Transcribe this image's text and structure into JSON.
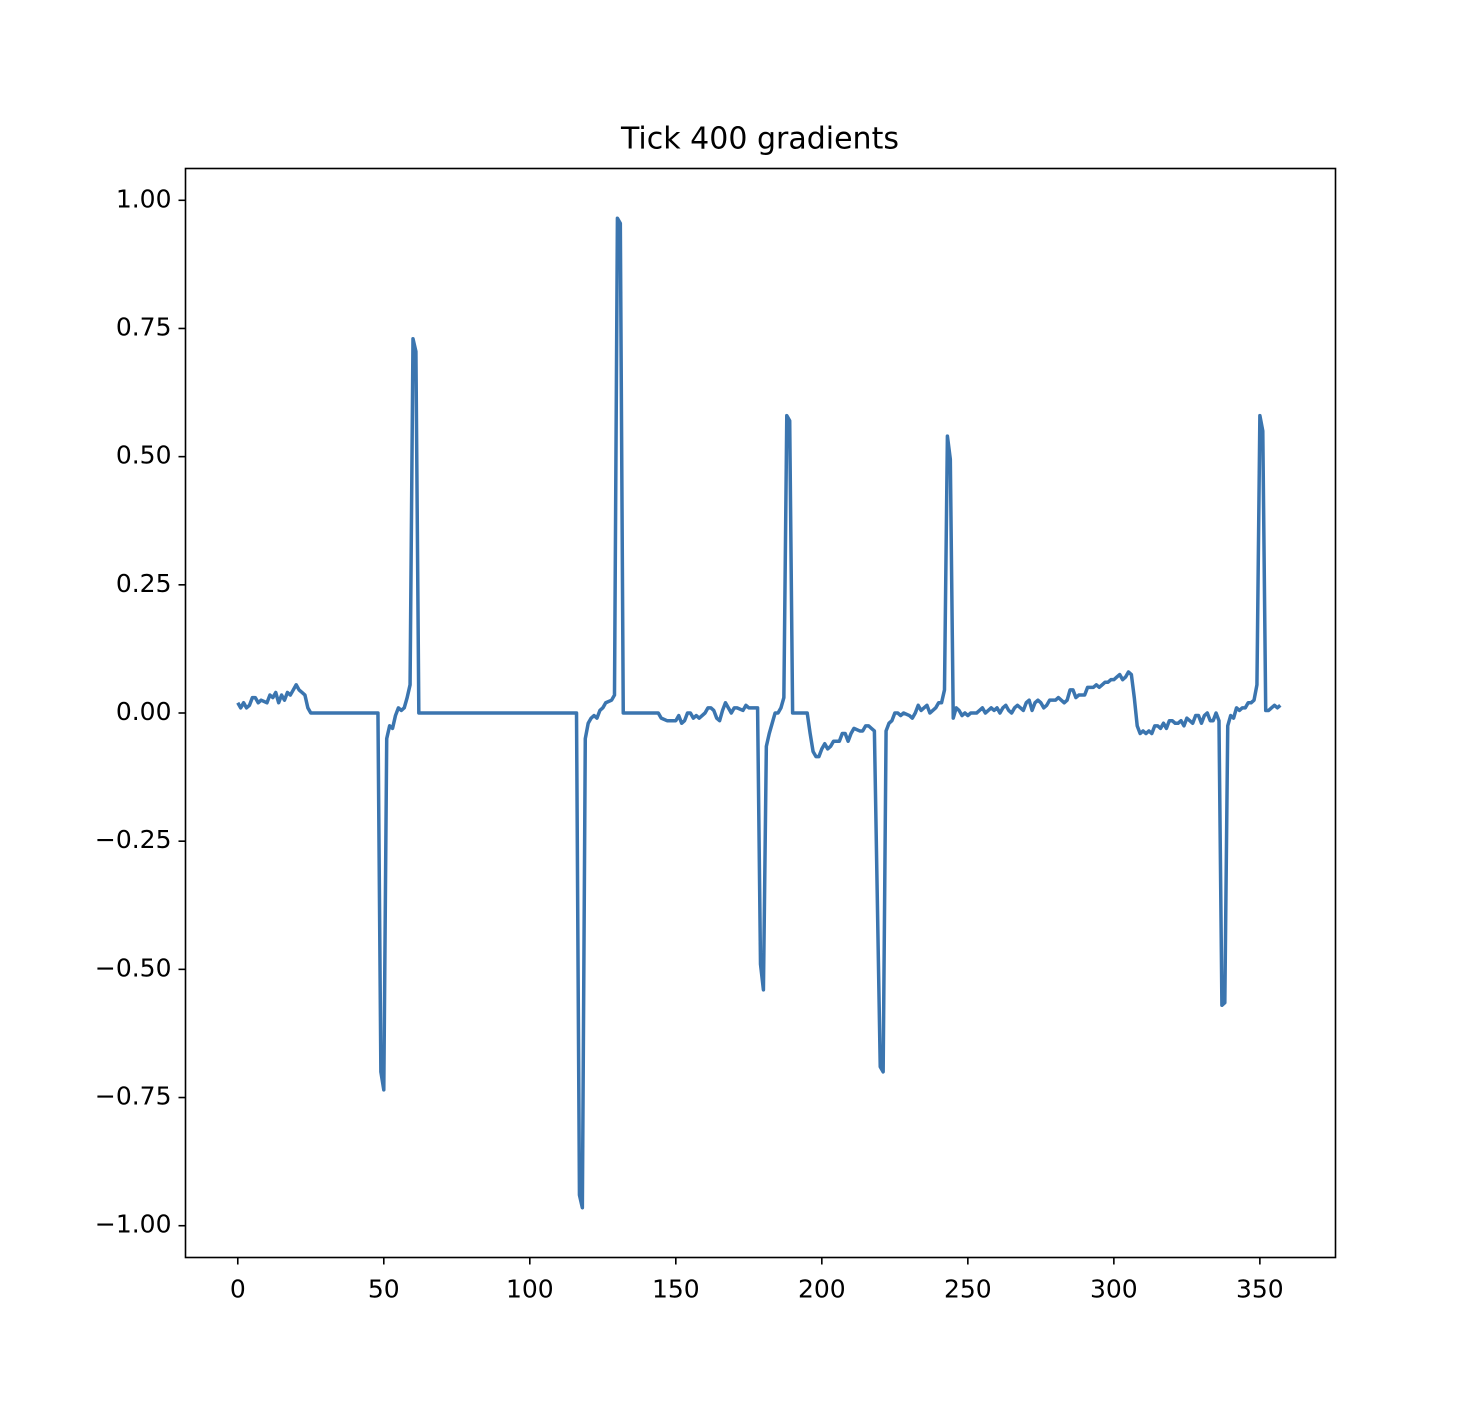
{
  "chart_data": {
    "type": "line",
    "title": "Tick 400 gradients",
    "x": [
      0,
      1,
      2,
      3,
      4,
      5,
      6,
      7,
      8,
      10,
      11,
      12,
      13,
      14,
      15,
      16,
      17,
      18,
      19,
      20,
      21,
      22,
      23,
      24,
      25,
      48,
      49,
      50,
      51,
      52,
      53,
      54,
      55,
      56,
      57,
      58,
      59,
      60,
      61,
      62,
      116,
      117,
      118,
      119,
      120,
      121,
      122,
      123,
      124,
      125,
      126,
      128,
      129,
      130,
      131,
      132,
      144,
      145,
      147,
      150,
      151,
      152,
      153,
      154,
      155,
      156,
      157,
      158,
      160,
      161,
      162,
      163,
      164,
      165,
      166,
      167,
      168,
      169,
      170,
      171,
      173,
      174,
      175,
      177,
      178,
      179,
      180,
      181,
      182,
      183,
      184,
      185,
      186,
      187,
      188,
      189,
      190,
      195,
      196,
      197,
      198,
      199,
      200,
      201,
      202,
      203,
      204,
      206,
      207,
      208,
      209,
      210,
      211,
      213,
      214,
      215,
      216,
      217,
      218,
      220,
      221,
      222,
      223,
      224,
      225,
      226,
      227,
      228,
      230,
      231,
      232,
      233,
      234,
      235,
      236,
      237,
      238,
      239,
      240,
      241,
      242,
      243,
      244,
      245,
      246,
      247,
      248,
      249,
      250,
      251,
      253,
      254,
      255,
      256,
      257,
      258,
      259,
      260,
      261,
      262,
      263,
      264,
      265,
      266,
      267,
      268,
      269,
      270,
      271,
      272,
      273,
      274,
      275,
      276,
      277,
      278,
      279,
      280,
      281,
      282,
      283,
      284,
      285,
      286,
      287,
      288,
      290,
      291,
      293,
      294,
      295,
      296,
      297,
      298,
      299,
      300,
      301,
      302,
      303,
      304,
      305,
      306,
      307,
      308,
      309,
      310,
      311,
      312,
      313,
      314,
      315,
      316,
      317,
      318,
      319,
      320,
      321,
      322,
      323,
      324,
      325,
      326,
      327,
      328,
      329,
      330,
      331,
      332,
      333,
      334,
      335,
      336,
      337,
      338,
      339,
      340,
      341,
      342,
      343,
      344,
      345,
      346,
      347,
      348,
      349,
      350,
      351,
      352,
      353,
      354,
      355,
      356,
      357
    ],
    "series": [
      {
        "color": "#3b75af",
        "values": [
          0.02,
          0.01,
          0.02,
          0.01,
          0.015,
          0.03,
          0.03,
          0.02,
          0.025,
          0.02,
          0.035,
          0.03,
          0.04,
          0.02,
          0.035,
          0.025,
          0.04,
          0.035,
          0.045,
          0.055,
          0.045,
          0.04,
          0.035,
          0.01,
          0,
          0,
          -0.7,
          -0.735,
          -0.05,
          -0.025,
          -0.03,
          -0.005,
          0.01,
          0.005,
          0.01,
          0.03,
          0.055,
          0.73,
          0.705,
          0,
          0,
          -0.94,
          -0.965,
          -0.05,
          -0.02,
          -0.01,
          -0.005,
          -0.01,
          0.005,
          0.01,
          0.02,
          0.025,
          0.035,
          0.965,
          0.955,
          0,
          0,
          -0.01,
          -0.015,
          -0.015,
          -0.005,
          -0.02,
          -0.015,
          0,
          0,
          -0.01,
          -0.005,
          -0.01,
          0,
          0.01,
          0.01,
          0.005,
          -0.01,
          -0.015,
          0.005,
          0.02,
          0.01,
          0,
          0.01,
          0.01,
          0.005,
          0.015,
          0.01,
          0.01,
          0.01,
          -0.49,
          -0.54,
          -0.065,
          -0.04,
          -0.02,
          0,
          0,
          0.01,
          0.03,
          0.58,
          0.57,
          0,
          0,
          -0.04,
          -0.075,
          -0.085,
          -0.085,
          -0.07,
          -0.06,
          -0.07,
          -0.065,
          -0.055,
          -0.055,
          -0.04,
          -0.04,
          -0.055,
          -0.04,
          -0.03,
          -0.035,
          -0.035,
          -0.025,
          -0.025,
          -0.03,
          -0.035,
          -0.69,
          -0.7,
          -0.035,
          -0.02,
          -0.015,
          0,
          0,
          -0.005,
          0,
          -0.005,
          -0.01,
          0,
          0.015,
          0.005,
          0.01,
          0.015,
          0,
          0.005,
          0.01,
          0.02,
          0.02,
          0.045,
          0.54,
          0.495,
          -0.01,
          0.01,
          0.005,
          -0.005,
          0,
          -0.005,
          0,
          0,
          0.005,
          0.01,
          0,
          0.005,
          0.01,
          0.005,
          0.01,
          0,
          0.01,
          0.015,
          0.005,
          0,
          0.01,
          0.015,
          0.01,
          0.005,
          0.02,
          0.025,
          0.005,
          0.02,
          0.025,
          0.02,
          0.01,
          0.015,
          0.025,
          0.025,
          0.025,
          0.03,
          0.025,
          0.02,
          0.025,
          0.045,
          0.045,
          0.03,
          0.035,
          0.035,
          0.05,
          0.05,
          0.055,
          0.05,
          0.055,
          0.06,
          0.06,
          0.065,
          0.065,
          0.07,
          0.075,
          0.065,
          0.07,
          0.08,
          0.075,
          0.03,
          -0.025,
          -0.04,
          -0.035,
          -0.04,
          -0.035,
          -0.04,
          -0.025,
          -0.025,
          -0.03,
          -0.02,
          -0.03,
          -0.015,
          -0.015,
          -0.02,
          -0.02,
          -0.015,
          -0.025,
          -0.01,
          -0.015,
          -0.02,
          -0.005,
          -0.005,
          -0.02,
          -0.005,
          0,
          -0.015,
          -0.015,
          0,
          -0.015,
          -0.57,
          -0.565,
          -0.025,
          -0.005,
          -0.01,
          0.01,
          0.005,
          0.01,
          0.01,
          0.02,
          0.02,
          0.025,
          0.055,
          0.58,
          0.55,
          0.005,
          0.005,
          0.01,
          0.015,
          0.01,
          0.015
        ]
      }
    ],
    "xlim": [
      -17.9,
      375.9
    ],
    "xticks": [
      0,
      50,
      100,
      150,
      200,
      250,
      300,
      350
    ],
    "ylim": [
      -1.062,
      1.062
    ],
    "yticks": [
      {
        "value": -1,
        "label": "−1.00"
      },
      {
        "value": -0.75,
        "label": "−0.75"
      },
      {
        "value": -0.5,
        "label": "−0.50"
      },
      {
        "value": -0.25,
        "label": "−0.25"
      },
      {
        "value": 0,
        "label": "0.00"
      },
      {
        "value": 0.25,
        "label": "0.25"
      },
      {
        "value": 0.5,
        "label": "0.50"
      },
      {
        "value": 0.75,
        "label": "0.75"
      },
      {
        "value": 1,
        "label": "1.00"
      }
    ]
  }
}
